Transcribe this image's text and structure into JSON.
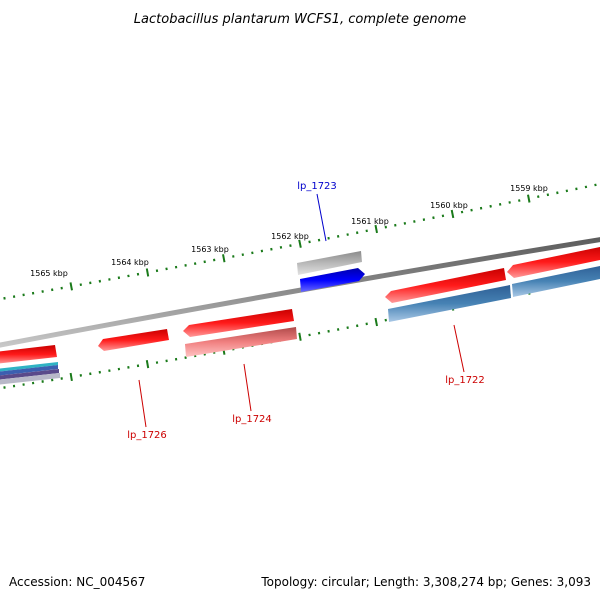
{
  "title": "Lactobacillus plantarum WCFS1, complete genome",
  "footer": {
    "accession": "Accession: NC_004567",
    "summary": "Topology: circular; Length: 3,308,274 bp; Genes: 3,093"
  },
  "tick_labels": [
    "1559 kbp",
    "1560 kbp",
    "1561 kbp",
    "1562 kbp",
    "1563 kbp",
    "1564 kbp",
    "1565 kbp"
  ],
  "gene_labels": [
    {
      "name": "lp_1723",
      "color": "#0000cc"
    },
    {
      "name": "lp_1722",
      "color": "#cc0000"
    },
    {
      "name": "lp_1724",
      "color": "#cc0000"
    },
    {
      "name": "lp_1726",
      "color": "#cc0000"
    }
  ],
  "colors": {
    "backbone": "#7a7a7a",
    "forward_cds": "#ee0000",
    "reverse_cds_steel": "#3f7ab8",
    "light_red": "#f08a8a",
    "blue_cds": "#0000ee",
    "gray_cds": "#a8a8a8",
    "tick": "#1a7a1a"
  }
}
